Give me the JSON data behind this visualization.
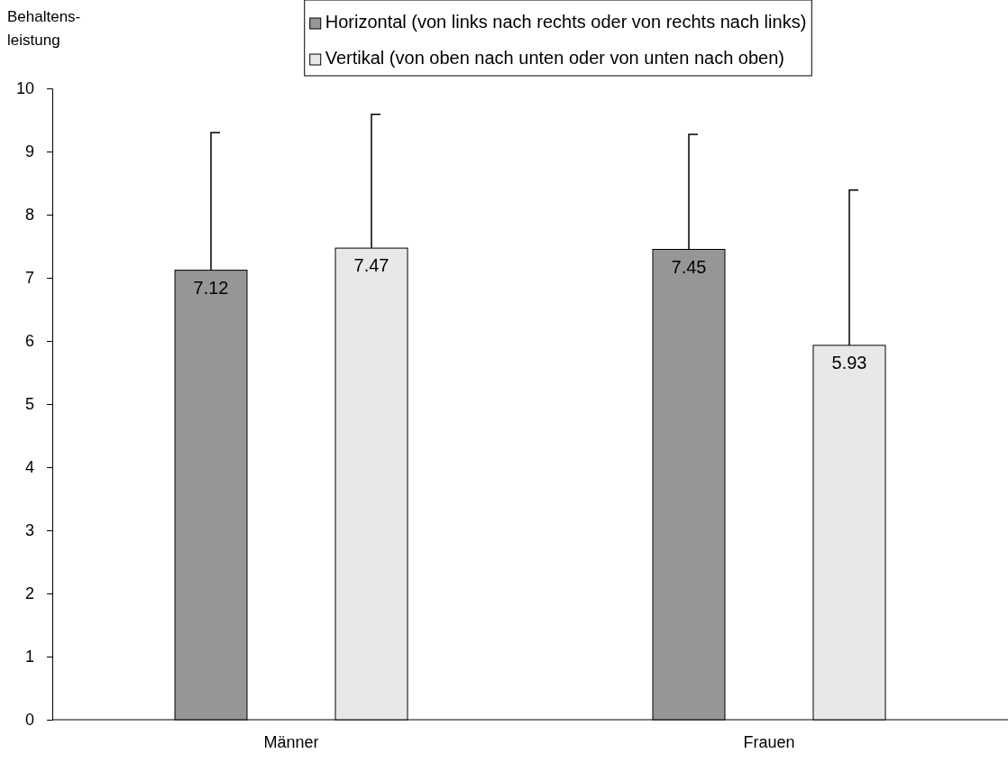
{
  "chart_data": {
    "type": "bar",
    "ylabel": "Behaltens-\nleistung",
    "categories": [
      "Männer",
      "Frauen"
    ],
    "series": [
      {
        "name": "Horizontal (von links nach rechts oder von rechts nach links)",
        "color": "#969696",
        "values": [
          7.12,
          7.45
        ],
        "errors": [
          [
            7.12,
            9.3
          ],
          [
            7.45,
            9.27
          ]
        ]
      },
      {
        "name": "Vertikal (von oben nach unten oder von unten nach oben)",
        "color": "#e8e8e8",
        "values": [
          7.47,
          5.93
        ],
        "errors": [
          [
            7.47,
            9.59
          ],
          [
            5.93,
            8.39
          ]
        ]
      }
    ],
    "ylim": [
      0,
      10
    ],
    "yticks": [
      0,
      1,
      2,
      3,
      4,
      5,
      6,
      7,
      8,
      9,
      10
    ],
    "data_labels": true,
    "legend": "top",
    "grid": false
  }
}
